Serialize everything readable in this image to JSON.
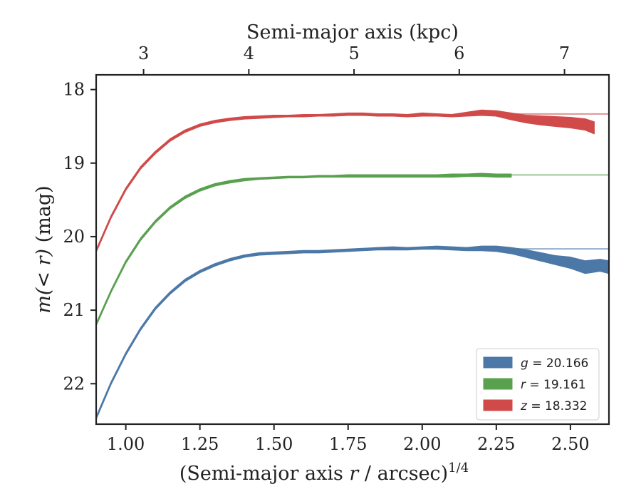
{
  "chart_data": {
    "type": "area",
    "xlabel_parts": {
      "prefix": "(Semi-major axis ",
      "var": "r",
      "suffix": " / arcsec)",
      "sup": "1/4"
    },
    "ylabel_parts": {
      "prefix": "m(< r)",
      "suffix": " (mag)"
    },
    "top_xlabel": "Semi-major axis (kpc)",
    "xlim": [
      0.9,
      2.63
    ],
    "ylim": [
      22.55,
      17.8
    ],
    "y_inverted": true,
    "x_ticks": [
      1.0,
      1.25,
      1.5,
      1.75,
      2.0,
      2.25,
      2.5
    ],
    "x_tick_labels": [
      "1.00",
      "1.25",
      "1.50",
      "1.75",
      "2.00",
      "2.25",
      "2.50"
    ],
    "y_ticks": [
      18,
      19,
      20,
      21,
      22
    ],
    "y_tick_labels": [
      "18",
      "19",
      "20",
      "21",
      "22"
    ],
    "top_ticks_kpc": [
      3,
      4,
      5,
      6,
      7
    ],
    "top_tick_labels": [
      "3",
      "4",
      "5",
      "6",
      "7"
    ],
    "kpc_to_x": {
      "3": 1.06,
      "4": 1.415,
      "5": 1.77,
      "6": 2.125,
      "7": 2.48
    },
    "legend_position": "lower-right",
    "series": [
      {
        "name": "g = 20.166",
        "legend_var": "g",
        "legend_value": "20.166",
        "color": "#4C78A8",
        "asymptote": 20.166,
        "asymptote_x_start": 2.2,
        "x": [
          0.9,
          0.95,
          1.0,
          1.05,
          1.1,
          1.15,
          1.2,
          1.25,
          1.3,
          1.35,
          1.4,
          1.45,
          1.5,
          1.55,
          1.6,
          1.65,
          1.7,
          1.75,
          1.8,
          1.85,
          1.9,
          1.95,
          2.0,
          2.05,
          2.1,
          2.15,
          2.2,
          2.25,
          2.3,
          2.35,
          2.4,
          2.45,
          2.5,
          2.55,
          2.6,
          2.63
        ],
        "lower": [
          22.45,
          21.98,
          21.58,
          21.24,
          20.96,
          20.75,
          20.58,
          20.46,
          20.37,
          20.3,
          20.25,
          20.22,
          20.21,
          20.2,
          20.19,
          20.19,
          20.18,
          20.17,
          20.16,
          20.15,
          20.14,
          20.15,
          20.14,
          20.13,
          20.14,
          20.15,
          20.13,
          20.13,
          20.15,
          20.18,
          20.22,
          20.26,
          20.28,
          20.33,
          20.31,
          20.33
        ],
        "upper": [
          22.48,
          22.01,
          21.61,
          21.27,
          20.99,
          20.78,
          20.61,
          20.49,
          20.4,
          20.33,
          20.28,
          20.25,
          20.24,
          20.23,
          20.22,
          20.22,
          20.21,
          20.2,
          20.19,
          20.18,
          20.18,
          20.18,
          20.17,
          20.17,
          20.18,
          20.19,
          20.19,
          20.2,
          20.23,
          20.28,
          20.33,
          20.38,
          20.43,
          20.5,
          20.47,
          20.5
        ]
      },
      {
        "name": "r = 19.161",
        "legend_var": "r",
        "legend_value": "19.161",
        "color": "#59A14F",
        "asymptote": 19.161,
        "asymptote_x_start": 2.3,
        "x": [
          0.9,
          0.95,
          1.0,
          1.05,
          1.1,
          1.15,
          1.2,
          1.25,
          1.3,
          1.35,
          1.4,
          1.45,
          1.5,
          1.55,
          1.6,
          1.65,
          1.7,
          1.75,
          1.8,
          1.85,
          1.9,
          1.95,
          2.0,
          2.05,
          2.1,
          2.15,
          2.2,
          2.25,
          2.3
        ],
        "lower": [
          21.18,
          20.73,
          20.33,
          20.02,
          19.78,
          19.59,
          19.45,
          19.35,
          19.28,
          19.24,
          19.21,
          19.2,
          19.19,
          19.18,
          19.18,
          19.17,
          19.17,
          19.16,
          19.16,
          19.16,
          19.16,
          19.16,
          19.16,
          19.16,
          19.15,
          19.15,
          19.14,
          19.15,
          19.15
        ],
        "upper": [
          21.21,
          20.76,
          20.36,
          20.05,
          19.81,
          19.62,
          19.48,
          19.38,
          19.31,
          19.27,
          19.24,
          19.22,
          19.21,
          19.2,
          19.2,
          19.19,
          19.19,
          19.19,
          19.19,
          19.19,
          19.19,
          19.19,
          19.19,
          19.19,
          19.19,
          19.18,
          19.18,
          19.19,
          19.19
        ]
      },
      {
        "name": "z = 18.332",
        "legend_var": "z",
        "legend_value": "18.332",
        "color": "#D04A4A",
        "asymptote": 18.332,
        "asymptote_x_start": 2.25,
        "x": [
          0.9,
          0.95,
          1.0,
          1.05,
          1.1,
          1.15,
          1.2,
          1.25,
          1.3,
          1.35,
          1.4,
          1.45,
          1.5,
          1.55,
          1.6,
          1.65,
          1.7,
          1.75,
          1.8,
          1.85,
          1.9,
          1.95,
          2.0,
          2.05,
          2.1,
          2.15,
          2.2,
          2.25,
          2.3,
          2.35,
          2.4,
          2.45,
          2.5,
          2.55,
          2.58
        ],
        "lower": [
          20.18,
          19.72,
          19.34,
          19.05,
          18.84,
          18.67,
          18.55,
          18.47,
          18.42,
          18.39,
          18.37,
          18.36,
          18.35,
          18.35,
          18.34,
          18.34,
          18.33,
          18.32,
          18.32,
          18.33,
          18.33,
          18.34,
          18.32,
          18.33,
          18.34,
          18.31,
          18.28,
          18.29,
          18.32,
          18.35,
          18.36,
          18.37,
          18.38,
          18.4,
          18.44
        ],
        "upper": [
          20.21,
          19.75,
          19.37,
          19.08,
          18.87,
          18.7,
          18.58,
          18.5,
          18.45,
          18.42,
          18.4,
          18.39,
          18.38,
          18.37,
          18.37,
          18.36,
          18.36,
          18.35,
          18.35,
          18.36,
          18.36,
          18.37,
          18.36,
          18.36,
          18.37,
          18.36,
          18.35,
          18.36,
          18.41,
          18.45,
          18.48,
          18.5,
          18.52,
          18.55,
          18.6
        ]
      }
    ]
  }
}
